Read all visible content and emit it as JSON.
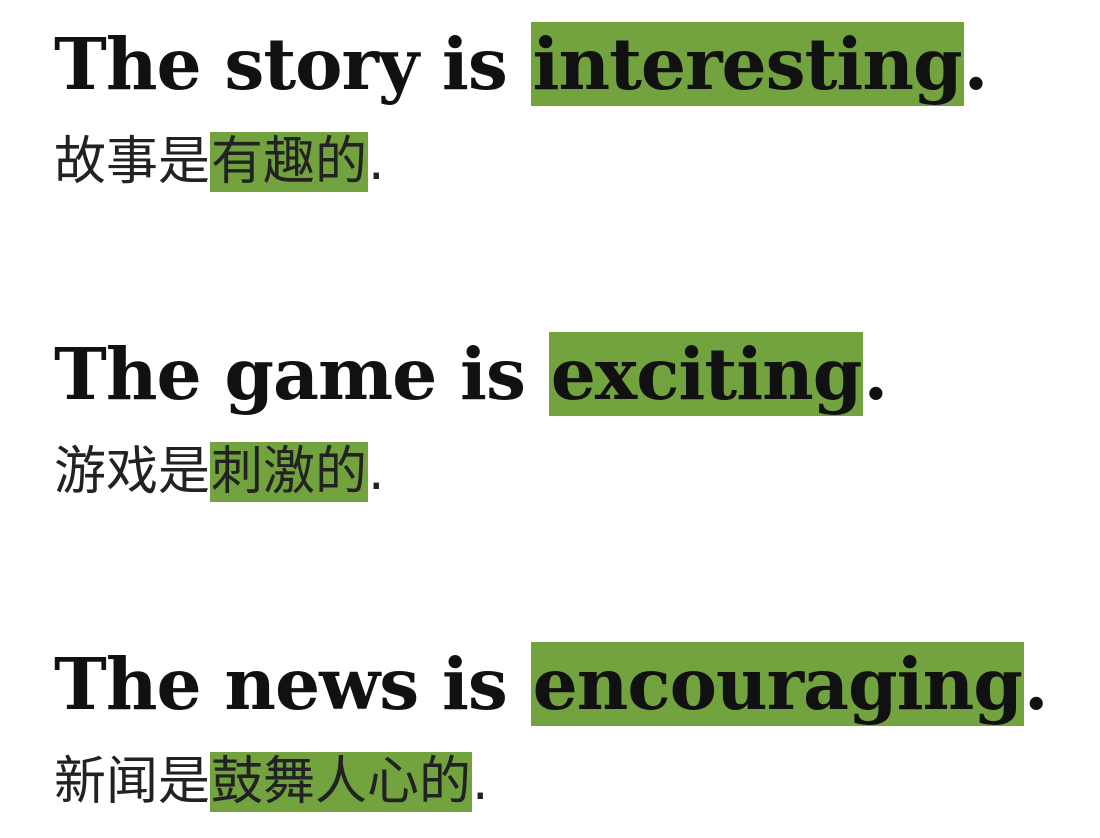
{
  "highlight_color": "#72a33f",
  "sentences": [
    {
      "english": {
        "before": "The story is ",
        "highlight": "interesting",
        "after": "."
      },
      "chinese": {
        "before": "故事是",
        "highlight": "有趣的",
        "after": "."
      }
    },
    {
      "english": {
        "before": "The game is ",
        "highlight": "exciting",
        "after": "."
      },
      "chinese": {
        "before": "游戏是",
        "highlight": "刺激的",
        "after": "."
      }
    },
    {
      "english": {
        "before": "The news is ",
        "highlight": "encouraging",
        "after": "."
      },
      "chinese": {
        "before": "新闻是",
        "highlight": "鼓舞人心的",
        "after": "."
      }
    }
  ]
}
